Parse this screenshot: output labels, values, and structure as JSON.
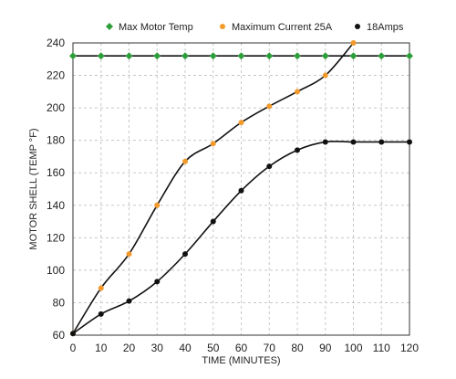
{
  "chart_data": {
    "type": "line",
    "xlabel": "TIME (MINUTES)",
    "ylabel": "MOTOR SHELL (TEMP °F)",
    "xlim": [
      0,
      120
    ],
    "ylim": [
      60,
      240
    ],
    "xticks": [
      0,
      10,
      20,
      30,
      40,
      50,
      60,
      70,
      80,
      90,
      100,
      110,
      120
    ],
    "yticks": [
      60,
      80,
      100,
      120,
      140,
      160,
      180,
      200,
      220,
      240
    ],
    "grid": true,
    "legend_position": "top",
    "series": [
      {
        "name": "Max Motor Temp",
        "color": "#2e9e3a",
        "marker": "diamond",
        "x": [
          0,
          10,
          20,
          30,
          40,
          50,
          60,
          70,
          80,
          90,
          100,
          110,
          120
        ],
        "y": [
          232,
          232,
          232,
          232,
          232,
          232,
          232,
          232,
          232,
          232,
          232,
          232,
          232
        ]
      },
      {
        "name": "Maximum Current 25A",
        "color": "#f39a2c",
        "marker": "circle",
        "x": [
          0,
          10,
          20,
          30,
          40,
          50,
          60,
          70,
          80,
          90,
          100
        ],
        "y": [
          61,
          89,
          110,
          140,
          167,
          178,
          191,
          201,
          210,
          220,
          240
        ]
      },
      {
        "name": "18Amps",
        "color": "#111111",
        "marker": "circle",
        "x": [
          0,
          10,
          20,
          30,
          40,
          50,
          60,
          70,
          80,
          90,
          100,
          110,
          120
        ],
        "y": [
          61,
          73,
          81,
          93,
          110,
          130,
          149,
          164,
          174,
          179,
          179,
          179,
          179
        ]
      }
    ]
  }
}
